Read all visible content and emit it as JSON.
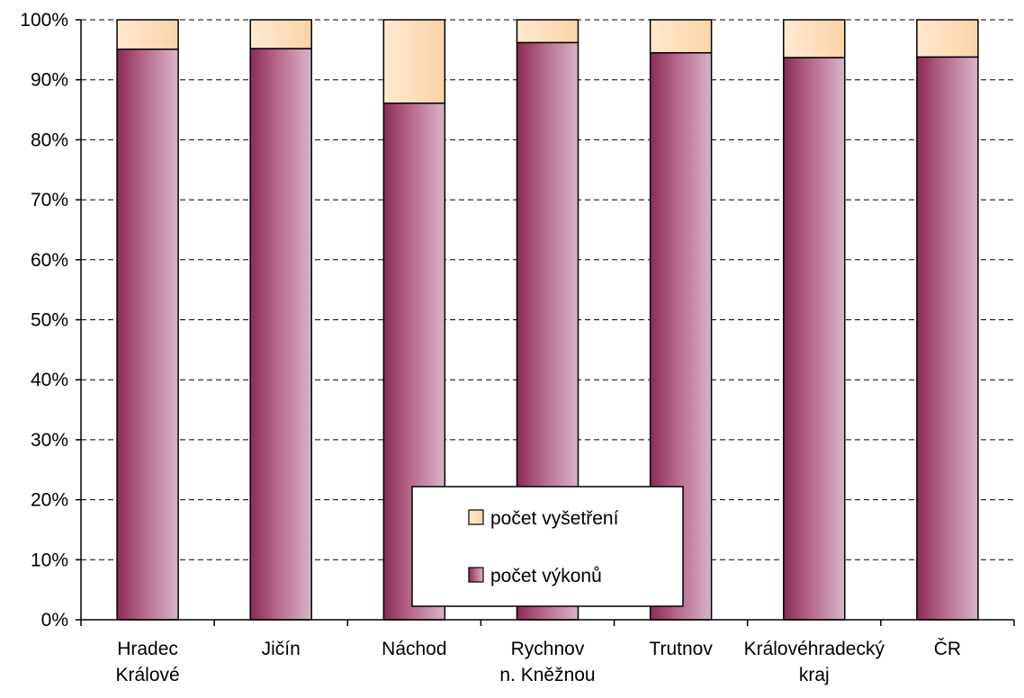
{
  "chart_data": {
    "type": "bar",
    "stacked": true,
    "percent_stacked": true,
    "categories": [
      [
        "Hradec",
        "Králové"
      ],
      [
        "Jičín"
      ],
      [
        "Náchod"
      ],
      [
        "Rychnov",
        "n. Kněžnou"
      ],
      [
        "Trutnov"
      ],
      [
        "Královéhradecký",
        "kraj"
      ],
      [
        "ČR"
      ]
    ],
    "series": [
      {
        "name": "počet výkonů",
        "values": [
          95.1,
          95.2,
          86.1,
          96.2,
          94.5,
          93.7,
          93.8
        ],
        "color": "#9b3a64"
      },
      {
        "name": "počet vyšetření",
        "values": [
          4.9,
          4.8,
          13.9,
          3.8,
          5.5,
          6.3,
          6.2
        ],
        "color": "#ffd9b0"
      }
    ],
    "ylim": [
      0,
      100
    ],
    "yticks": [
      "0%",
      "10%",
      "20%",
      "30%",
      "40%",
      "50%",
      "60%",
      "70%",
      "80%",
      "90%",
      "100%"
    ],
    "grid": "dashed horizontal",
    "legend": {
      "placement": "bottom-center inside plot",
      "entries": [
        "počet vyšetření",
        "počet výkonů"
      ]
    }
  }
}
